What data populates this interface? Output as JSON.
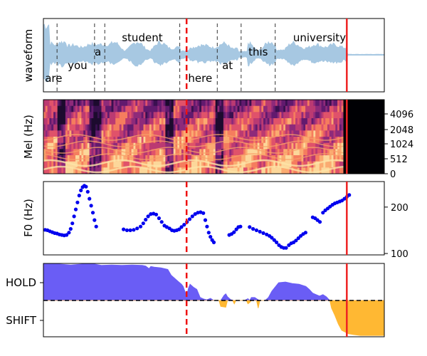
{
  "chart_data": [
    {
      "type": "line",
      "panel": "waveform",
      "ylabel": "waveform",
      "words": [
        {
          "text": "are",
          "t": 0.03,
          "level": "low"
        },
        {
          "text": "you",
          "t": 0.1,
          "level": "mid"
        },
        {
          "text": "a",
          "t": 0.16,
          "level": "high"
        },
        {
          "text": "student",
          "t": 0.29,
          "level": "top"
        },
        {
          "text": "here",
          "t": 0.46,
          "level": "low"
        },
        {
          "text": "at",
          "t": 0.54,
          "level": "mid"
        },
        {
          "text": "this",
          "t": 0.63,
          "level": "high"
        },
        {
          "text": "university",
          "t": 0.81,
          "level": "top"
        }
      ],
      "word_boundaries": [
        0.04,
        0.15,
        0.18,
        0.4,
        0.51,
        0.58,
        0.68
      ],
      "red_dashed_line": 0.42,
      "red_solid_line": 0.89,
      "speech_end": 0.89
    },
    {
      "type": "heatmap",
      "panel": "mel-spectrogram",
      "ylabel": "Mel (Hz)",
      "yticks": [
        "0",
        "512",
        "1024",
        "2048",
        "4096"
      ],
      "speech_end": 0.88
    },
    {
      "type": "scatter",
      "panel": "f0",
      "ylabel": "F0 (Hz)",
      "yticks": [
        "100",
        "200"
      ],
      "ylim": [
        97,
        255
      ],
      "series": [
        {
          "color": "#0000ee",
          "points": [
            [
              0.005,
              151
            ],
            [
              0.012,
              150
            ],
            [
              0.019,
              148
            ],
            [
              0.026,
              146
            ],
            [
              0.033,
              144
            ],
            [
              0.04,
              143
            ],
            [
              0.047,
              141
            ],
            [
              0.054,
              140
            ],
            [
              0.061,
              139
            ],
            [
              0.068,
              140
            ],
            [
              0.075,
              145
            ],
            [
              0.08,
              153
            ],
            [
              0.085,
              165
            ],
            [
              0.09,
              180
            ],
            [
              0.095,
              195
            ],
            [
              0.1,
              210
            ],
            [
              0.105,
              225
            ],
            [
              0.11,
              236
            ],
            [
              0.115,
              243
            ],
            [
              0.12,
              246
            ],
            [
              0.125,
              244
            ],
            [
              0.13,
              233
            ],
            [
              0.135,
              218
            ],
            [
              0.14,
              203
            ],
            [
              0.145,
              188
            ],
            [
              0.15,
              172
            ],
            [
              0.155,
              158
            ],
            [
              0.235,
              152
            ],
            [
              0.245,
              150
            ],
            [
              0.255,
              150
            ],
            [
              0.265,
              151
            ],
            [
              0.275,
              154
            ],
            [
              0.285,
              158
            ],
            [
              0.293,
              165
            ],
            [
              0.3,
              173
            ],
            [
              0.307,
              180
            ],
            [
              0.315,
              185
            ],
            [
              0.323,
              186
            ],
            [
              0.331,
              184
            ],
            [
              0.339,
              176
            ],
            [
              0.347,
              168
            ],
            [
              0.355,
              160
            ],
            [
              0.362,
              157
            ],
            [
              0.37,
              154
            ],
            [
              0.377,
              150
            ],
            [
              0.384,
              149
            ],
            [
              0.391,
              150
            ],
            [
              0.398,
              152
            ],
            [
              0.405,
              157
            ],
            [
              0.413,
              162
            ],
            [
              0.421,
              168
            ],
            [
              0.429,
              174
            ],
            [
              0.437,
              180
            ],
            [
              0.445,
              185
            ],
            [
              0.453,
              188
            ],
            [
              0.461,
              189
            ],
            [
              0.469,
              187
            ],
            [
              0.475,
              172
            ],
            [
              0.48,
              158
            ],
            [
              0.485,
              145
            ],
            [
              0.49,
              136
            ],
            [
              0.495,
              129
            ],
            [
              0.5,
              124
            ],
            [
              0.545,
              140
            ],
            [
              0.552,
              142
            ],
            [
              0.559,
              146
            ],
            [
              0.566,
              152
            ],
            [
              0.572,
              157
            ],
            [
              0.578,
              158
            ],
            [
              0.605,
              157
            ],
            [
              0.615,
              153
            ],
            [
              0.625,
              150
            ],
            [
              0.635,
              147
            ],
            [
              0.645,
              144
            ],
            [
              0.655,
              141
            ],
            [
              0.663,
              138
            ],
            [
              0.67,
              134
            ],
            [
              0.677,
              129
            ],
            [
              0.684,
              124
            ],
            [
              0.691,
              118
            ],
            [
              0.698,
              114
            ],
            [
              0.705,
              112
            ],
            [
              0.712,
              112
            ],
            [
              0.72,
              118
            ],
            [
              0.727,
              122
            ],
            [
              0.734,
              124
            ],
            [
              0.741,
              128
            ],
            [
              0.748,
              133
            ],
            [
              0.755,
              138
            ],
            [
              0.762,
              142
            ],
            [
              0.769,
              145
            ],
            [
              0.79,
              178
            ],
            [
              0.797,
              176
            ],
            [
              0.804,
              172
            ],
            [
              0.811,
              168
            ],
            [
              0.82,
              188
            ],
            [
              0.827,
              193
            ],
            [
              0.834,
              197
            ],
            [
              0.841,
              201
            ],
            [
              0.848,
              205
            ],
            [
              0.855,
              208
            ],
            [
              0.862,
              210
            ],
            [
              0.869,
              212
            ],
            [
              0.876,
              214
            ],
            [
              0.883,
              218
            ],
            [
              0.89,
              222
            ],
            [
              0.897,
              226
            ]
          ]
        }
      ],
      "red_dashed_line": 0.42,
      "red_solid_line": 0.89
    },
    {
      "type": "area",
      "panel": "turn-prediction",
      "yticks": [
        "HOLD",
        "SHIFT"
      ],
      "series": [
        {
          "name": "HOLD",
          "color": "#6a5df5",
          "points": [
            [
              0.0,
              0.98
            ],
            [
              0.02,
              1.0
            ],
            [
              0.05,
              0.98
            ],
            [
              0.08,
              0.96
            ],
            [
              0.11,
              0.98
            ],
            [
              0.14,
              1.0
            ],
            [
              0.17,
              0.95
            ],
            [
              0.2,
              0.96
            ],
            [
              0.23,
              0.95
            ],
            [
              0.26,
              0.96
            ],
            [
              0.29,
              0.95
            ],
            [
              0.3,
              0.93
            ],
            [
              0.31,
              0.86
            ],
            [
              0.315,
              0.92
            ],
            [
              0.325,
              0.9
            ],
            [
              0.345,
              0.88
            ],
            [
              0.365,
              0.84
            ],
            [
              0.375,
              0.68
            ],
            [
              0.385,
              0.6
            ],
            [
              0.395,
              0.52
            ],
            [
              0.405,
              0.44
            ],
            [
              0.41,
              0.38
            ],
            [
              0.42,
              0.12
            ],
            [
              0.425,
              0.32
            ],
            [
              0.43,
              0.44
            ],
            [
              0.44,
              0.36
            ],
            [
              0.45,
              0.3
            ],
            [
              0.46,
              0.08
            ],
            [
              0.47,
              0.04
            ],
            [
              0.48,
              0.02
            ],
            [
              0.49,
              0.06
            ],
            [
              0.5,
              0.0
            ],
            [
              0.52,
              0.0
            ],
            [
              0.53,
              0.14
            ],
            [
              0.535,
              0.18
            ],
            [
              0.54,
              0.1
            ],
            [
              0.55,
              0.02
            ],
            [
              0.56,
              0.0
            ],
            [
              0.59,
              0.0
            ],
            [
              0.6,
              0.05
            ],
            [
              0.605,
              0.0
            ],
            [
              0.61,
              0.08
            ],
            [
              0.62,
              0.08
            ],
            [
              0.63,
              0.02
            ],
            [
              0.635,
              0.0
            ],
            [
              0.65,
              0.0
            ],
            [
              0.66,
              0.08
            ],
            [
              0.67,
              0.25
            ],
            [
              0.69,
              0.48
            ],
            [
              0.71,
              0.5
            ],
            [
              0.73,
              0.46
            ],
            [
              0.75,
              0.44
            ],
            [
              0.77,
              0.38
            ],
            [
              0.78,
              0.3
            ],
            [
              0.79,
              0.2
            ],
            [
              0.8,
              0.16
            ],
            [
              0.81,
              0.12
            ],
            [
              0.82,
              0.16
            ],
            [
              0.83,
              0.1
            ],
            [
              0.84,
              0.0
            ],
            [
              1.0,
              0.0
            ]
          ]
        },
        {
          "name": "SHIFT",
          "color": "#ffb833",
          "points": [
            [
              0.0,
              0.0
            ],
            [
              0.515,
              0.0
            ],
            [
              0.52,
              -0.14
            ],
            [
              0.535,
              -0.16
            ],
            [
              0.54,
              0.0
            ],
            [
              0.555,
              0.0
            ],
            [
              0.56,
              -0.08
            ],
            [
              0.565,
              0.0
            ],
            [
              0.595,
              0.0
            ],
            [
              0.6,
              -0.08
            ],
            [
              0.605,
              -0.05
            ],
            [
              0.61,
              0.0
            ],
            [
              0.625,
              0.0
            ],
            [
              0.63,
              -0.18
            ],
            [
              0.635,
              0.0
            ],
            [
              0.84,
              0.0
            ],
            [
              0.845,
              -0.18
            ],
            [
              0.855,
              -0.35
            ],
            [
              0.865,
              -0.55
            ],
            [
              0.875,
              -0.7
            ],
            [
              0.885,
              -0.74
            ],
            [
              0.895,
              -0.78
            ],
            [
              0.91,
              -0.8
            ],
            [
              0.93,
              -0.82
            ],
            [
              0.96,
              -0.82
            ],
            [
              0.98,
              -0.82
            ],
            [
              1.0,
              -0.82
            ]
          ]
        }
      ],
      "baseline": "dashed-black",
      "red_dashed_line": 0.42,
      "red_solid_line": 0.89
    }
  ]
}
